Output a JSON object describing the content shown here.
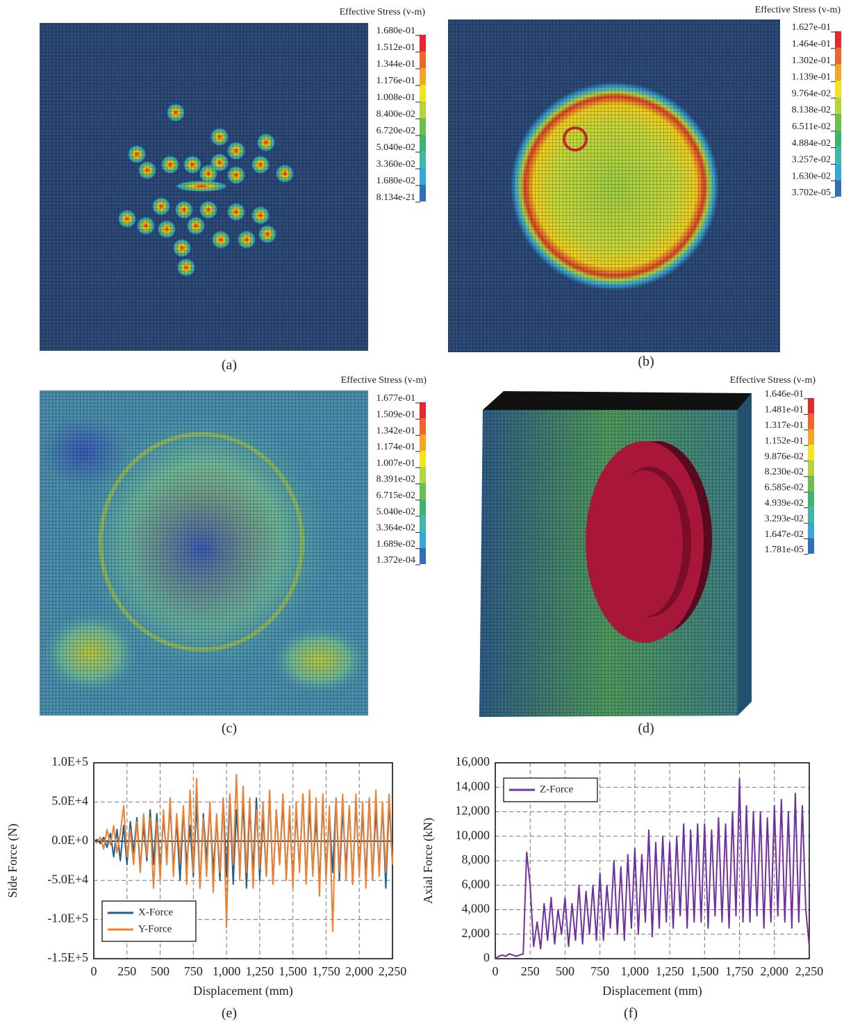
{
  "panels": [
    {
      "legend_title": "Effective Stress (v-m)",
      "levels": [
        "1.680e-01",
        "1.512e-01",
        "1.344e-01",
        "1.176e-01",
        "1.008e-01",
        "8.400e-02",
        "6.720e-02",
        "5.040e-02",
        "3.360e-02",
        "1.680e-02",
        "8.134e-21"
      ]
    },
    {
      "legend_title": "Effective Stress (v-m)",
      "levels": [
        "1.627e-01",
        "1.464e-01",
        "1.302e-01",
        "1.139e-01",
        "9.764e-02",
        "8.138e-02",
        "6.511e-02",
        "4.884e-02",
        "3.257e-02",
        "1.630e-02",
        "3.702e-05"
      ]
    },
    {
      "legend_title": "Effective Stress (v-m)",
      "levels": [
        "1.677e-01",
        "1.509e-01",
        "1.342e-01",
        "1.174e-01",
        "1.007e-01",
        "8.391e-02",
        "6.715e-02",
        "5.040e-02",
        "3.364e-02",
        "1.689e-02",
        "1.372e-04"
      ]
    },
    {
      "legend_title": "Effective Stress (v-m)",
      "levels": [
        "1.646e-01",
        "1.481e-01",
        "1.317e-01",
        "1.152e-01",
        "9.876e-02",
        "8.230e-02",
        "6.585e-02",
        "4.939e-02",
        "3.293e-02",
        "1.647e-02",
        "1.781e-05"
      ]
    }
  ],
  "captions": [
    "(a)",
    "(b)",
    "(c)",
    "(d)",
    "(e)",
    "(f)"
  ],
  "chart_data": [
    {
      "type": "line",
      "x_label": "Displacement (mm)",
      "y_label": "Side Force (N)",
      "x": [
        0,
        25,
        50,
        75,
        100,
        125,
        150,
        175,
        200,
        225,
        250,
        275,
        300,
        325,
        350,
        375,
        400,
        425,
        450,
        475,
        500,
        525,
        550,
        575,
        600,
        625,
        650,
        675,
        700,
        725,
        750,
        775,
        800,
        825,
        850,
        875,
        900,
        925,
        950,
        975,
        1000,
        1025,
        1050,
        1075,
        1100,
        1125,
        1150,
        1175,
        1200,
        1225,
        1250,
        1275,
        1300,
        1325,
        1350,
        1375,
        1400,
        1425,
        1450,
        1475,
        1500,
        1525,
        1550,
        1575,
        1600,
        1625,
        1650,
        1675,
        1700,
        1725,
        1750,
        1775,
        1800,
        1825,
        1850,
        1875,
        1900,
        1925,
        1950,
        1975,
        2000,
        2025,
        2050,
        2075,
        2100,
        2125,
        2150,
        2175,
        2200,
        2225,
        2250
      ],
      "series": [
        {
          "name": "X-Force",
          "color": "#1f5f8b",
          "values": [
            0,
            2000,
            -3000,
            5000,
            -8000,
            10000,
            -20000,
            15000,
            -25000,
            20000,
            -30000,
            25000,
            -15000,
            30000,
            -35000,
            20000,
            -25000,
            40000,
            -30000,
            35000,
            -40000,
            30000,
            -20000,
            45000,
            -35000,
            25000,
            -50000,
            40000,
            -30000,
            20000,
            -45000,
            50000,
            -60000,
            35000,
            -25000,
            45000,
            -40000,
            30000,
            -50000,
            55000,
            -45000,
            60000,
            -55000,
            40000,
            -35000,
            50000,
            -60000,
            45000,
            -40000,
            55000,
            -50000,
            35000,
            -45000,
            60000,
            -55000,
            40000,
            -30000,
            50000,
            -45000,
            35000,
            -55000,
            40000,
            -35000,
            60000,
            -50000,
            45000,
            -40000,
            30000,
            -55000,
            50000,
            -45000,
            35000,
            -40000,
            55000,
            -50000,
            40000,
            -35000,
            45000,
            -55000,
            50000,
            -40000,
            35000,
            -45000,
            55000,
            -50000,
            40000,
            -35000,
            45000,
            -60000,
            50000,
            -30000
          ]
        },
        {
          "name": "Y-Force",
          "color": "#f07f2f",
          "values": [
            0,
            -2000,
            5000,
            -10000,
            15000,
            -5000,
            20000,
            -15000,
            10000,
            45000,
            -20000,
            15000,
            -30000,
            25000,
            -40000,
            35000,
            -20000,
            30000,
            -60000,
            25000,
            -50000,
            40000,
            -30000,
            55000,
            -45000,
            35000,
            -25000,
            45000,
            -55000,
            65000,
            -40000,
            80000,
            -60000,
            30000,
            -45000,
            50000,
            -65000,
            35000,
            -40000,
            55000,
            -110000,
            60000,
            -30000,
            85000,
            -50000,
            70000,
            -40000,
            55000,
            -60000,
            40000,
            -35000,
            50000,
            -45000,
            65000,
            -55000,
            40000,
            -30000,
            60000,
            -50000,
            45000,
            -60000,
            50000,
            -40000,
            60000,
            -55000,
            65000,
            -45000,
            55000,
            -70000,
            60000,
            -50000,
            45000,
            -115000,
            55000,
            -40000,
            60000,
            -50000,
            45000,
            -55000,
            60000,
            -45000,
            50000,
            -60000,
            55000,
            -50000,
            65000,
            -45000,
            50000,
            -40000,
            60000,
            -30000
          ]
        }
      ],
      "xlim": [
        0,
        2250
      ],
      "xticks": [
        0,
        250,
        500,
        750,
        {
          "value": 1000,
          "label": "1,000"
        },
        {
          "value": 1250,
          "label": "1,250"
        },
        {
          "value": 1500,
          "label": "1,500"
        },
        {
          "value": 1750,
          "label": "1,750"
        },
        {
          "value": 2000,
          "label": "2,000"
        },
        {
          "value": 2250,
          "label": "2,250"
        }
      ],
      "ylim": [
        -150000,
        100000
      ],
      "yticks": [
        {
          "value": -150000,
          "label": "-1.5E+5"
        },
        {
          "value": -100000,
          "label": "-1.0E+5"
        },
        {
          "value": -50000,
          "label": "-5.0E+4"
        },
        {
          "value": 0,
          "label": "0.0E+0"
        },
        {
          "value": 50000,
          "label": "5.0E+4"
        },
        {
          "value": 100000,
          "label": "1.0E+5"
        }
      ],
      "grid": true,
      "legend": "lower left"
    },
    {
      "type": "line",
      "x_label": "Displacement (mm)",
      "y_label": "Axial Force (kN)",
      "x": [
        0,
        25,
        50,
        75,
        100,
        125,
        150,
        175,
        200,
        225,
        250,
        275,
        300,
        325,
        350,
        375,
        400,
        425,
        450,
        475,
        500,
        525,
        550,
        575,
        600,
        625,
        650,
        675,
        700,
        725,
        750,
        775,
        800,
        825,
        850,
        875,
        900,
        925,
        950,
        975,
        1000,
        1025,
        1050,
        1075,
        1100,
        1125,
        1150,
        1175,
        1200,
        1225,
        1250,
        1275,
        1300,
        1325,
        1350,
        1375,
        1400,
        1425,
        1450,
        1475,
        1500,
        1525,
        1550,
        1575,
        1600,
        1625,
        1650,
        1675,
        1700,
        1725,
        1750,
        1775,
        1800,
        1825,
        1850,
        1875,
        1900,
        1925,
        1950,
        1975,
        2000,
        2025,
        2050,
        2075,
        2100,
        2125,
        2150,
        2175,
        2200,
        2225,
        2250
      ],
      "series": [
        {
          "name": "Z-Force",
          "color": "#7030a0",
          "values": [
            0,
            200,
            300,
            200,
            400,
            300,
            200,
            300,
            400,
            8700,
            6000,
            1000,
            3000,
            800,
            4500,
            1500,
            5000,
            1200,
            4000,
            2000,
            5000,
            1000,
            4500,
            1500,
            6000,
            1200,
            5500,
            2000,
            6000,
            1500,
            7000,
            1500,
            6000,
            2500,
            8000,
            2000,
            7500,
            1500,
            8500,
            2500,
            9000,
            2000,
            8500,
            3000,
            10500,
            1800,
            9500,
            2500,
            10000,
            3000,
            9500,
            2500,
            10000,
            3500,
            11000,
            2500,
            10500,
            3000,
            11000,
            3000,
            11000,
            2500,
            10500,
            3500,
            11500,
            3000,
            11000,
            2500,
            12000,
            3500,
            14700,
            3000,
            12500,
            3000,
            12000,
            3500,
            12000,
            2500,
            11500,
            3000,
            12500,
            3500,
            13000,
            3000,
            12000,
            2500,
            13500,
            3000,
            12500,
            4000,
            1000
          ]
        }
      ],
      "xlim": [
        0,
        2250
      ],
      "xticks": [
        0,
        250,
        500,
        750,
        {
          "value": 1000,
          "label": "1,000"
        },
        {
          "value": 1250,
          "label": "1,250"
        },
        {
          "value": 1500,
          "label": "1,500"
        },
        {
          "value": 1750,
          "label": "1,750"
        },
        {
          "value": 2000,
          "label": "2,000"
        },
        {
          "value": 2250,
          "label": "2,250"
        }
      ],
      "ylim": [
        0,
        16000
      ],
      "yticks": [
        0,
        {
          "value": 2000,
          "label": "2,000"
        },
        {
          "value": 4000,
          "label": "4,000"
        },
        {
          "value": 6000,
          "label": "6,000"
        },
        {
          "value": 8000,
          "label": "8,000"
        },
        {
          "value": 10000,
          "label": "10,000"
        },
        {
          "value": 12000,
          "label": "12,000"
        },
        {
          "value": 14000,
          "label": "14,000"
        },
        {
          "value": 16000,
          "label": "16,000"
        }
      ],
      "grid": true,
      "legend": "upper left"
    }
  ]
}
